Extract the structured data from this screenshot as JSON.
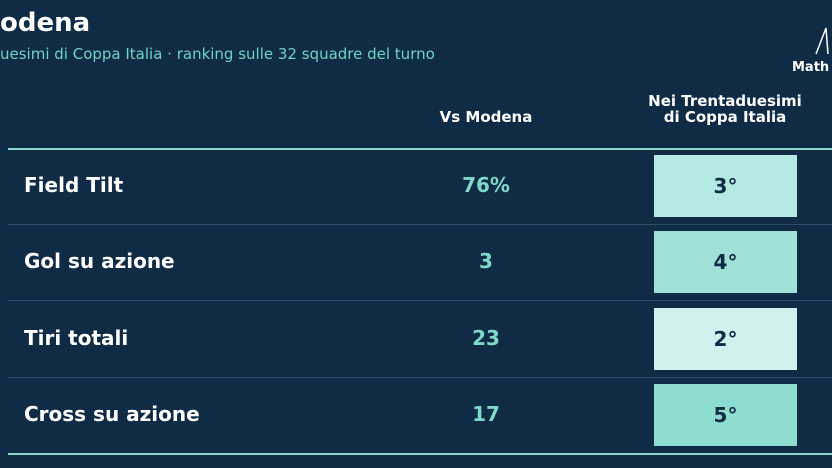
{
  "header": {
    "title": "odena",
    "subtitle": "uesimi di Coppa Italia · ranking sulle 32 squadre del turno",
    "logo": "Math"
  },
  "table": {
    "columns": [
      "Vs Modena",
      [
        "Nei Trentaduesimi",
        "di Coppa Italia"
      ]
    ],
    "rows": [
      [
        "Field Tilt",
        "76%",
        "3°"
      ],
      [
        "Gol su azione",
        "3",
        "4°"
      ],
      [
        "Tiri totali",
        "23",
        "2°"
      ],
      [
        "Cross su azione",
        "17",
        "5°"
      ]
    ]
  }
}
